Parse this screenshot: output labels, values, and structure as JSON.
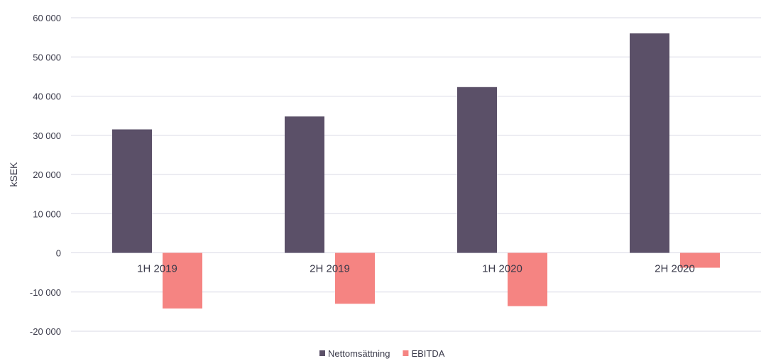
{
  "chart_data": {
    "type": "bar",
    "categories": [
      "1H 2019",
      "2H 2019",
      "1H 2020",
      "2H 2020"
    ],
    "series": [
      {
        "name": "Nettomsättning",
        "values": [
          31500,
          34800,
          42300,
          56000
        ],
        "color": "#5b5068"
      },
      {
        "name": "EBITDA",
        "values": [
          -14200,
          -13000,
          -13600,
          -3800
        ],
        "color": "#f58482"
      }
    ],
    "ylabel": "kSEK",
    "ylim": [
      -20000,
      60000
    ],
    "yticks": [
      {
        "value": 60000,
        "label": "60 000"
      },
      {
        "value": 50000,
        "label": "50 000"
      },
      {
        "value": 40000,
        "label": "40 000"
      },
      {
        "value": 30000,
        "label": "30 000"
      },
      {
        "value": 20000,
        "label": "20 000"
      },
      {
        "value": 10000,
        "label": "10 000"
      },
      {
        "value": 0,
        "label": "0"
      },
      {
        "value": -10000,
        "label": "-10 000"
      },
      {
        "value": -20000,
        "label": "-20 000"
      }
    ],
    "grid": true,
    "legend": "bottom"
  }
}
